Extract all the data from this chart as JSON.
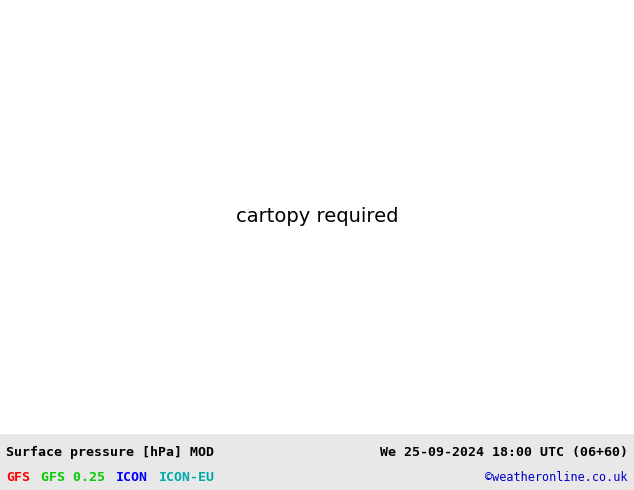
{
  "title_left": "Surface pressure [hPa] MOD",
  "title_right": "We 25-09-2024 18:00 UTC (06+60)",
  "credit": "©weatheronline.co.uk",
  "legend_items": [
    {
      "label": "GFS",
      "color": "#ff0000"
    },
    {
      "label": "GFS 0.25",
      "color": "#00cc00"
    },
    {
      "label": "ICON",
      "color": "#0000ff"
    },
    {
      "label": "ICON-EU",
      "color": "#00aaaa"
    }
  ],
  "land_color": "#c8f0a0",
  "sea_color": "#d8d8e8",
  "border_color": "#aaaaaa",
  "fig_width": 6.34,
  "fig_height": 4.9,
  "dpi": 100,
  "extent": [
    -12,
    10,
    34,
    50
  ],
  "bottom_bar_color": "#e0e0e0",
  "c_gfs": "#ff0000",
  "c_gfs025": "#00cc00",
  "c_icon": "#0000ff",
  "c_iconeu": "#00cccc"
}
